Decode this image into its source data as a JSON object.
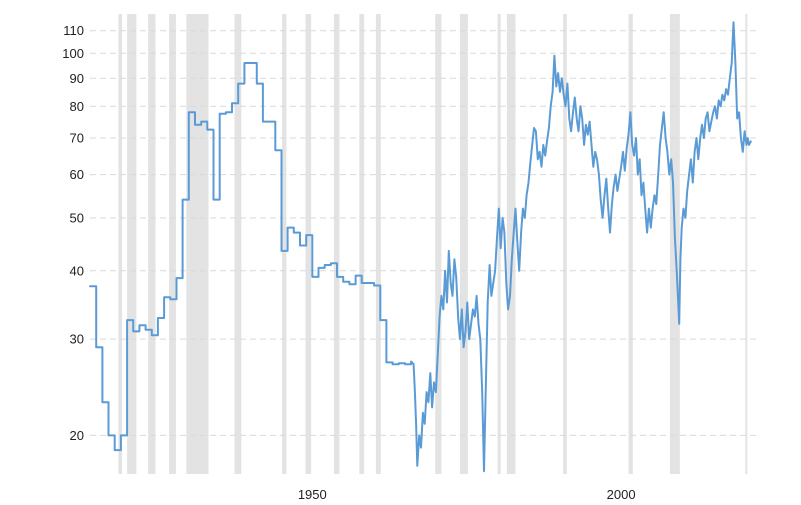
{
  "chart_data": {
    "type": "line",
    "title": "",
    "xlabel": "",
    "ylabel": "",
    "y_scale": "log",
    "xlim": [
      1914,
      2022
    ],
    "ylim": [
      17,
      118
    ],
    "grid": true,
    "legend": "none",
    "colors": {
      "series": "#5b9bd5",
      "recession": "#e3e3e3",
      "grid": "#d9d9d9"
    },
    "y_ticks": [
      {
        "value": 20,
        "label": "20"
      },
      {
        "value": 30,
        "label": "30"
      },
      {
        "value": 40,
        "label": "40"
      },
      {
        "value": 50,
        "label": "50"
      },
      {
        "value": 60,
        "label": "60"
      },
      {
        "value": 70,
        "label": "70"
      },
      {
        "value": 80,
        "label": "80"
      },
      {
        "value": 90,
        "label": "90"
      },
      {
        "value": 100,
        "label": "100"
      },
      {
        "value": 110,
        "label": "110"
      }
    ],
    "x_ticks": [
      {
        "value": 1950,
        "label": "1950"
      },
      {
        "value": 2000,
        "label": "2000"
      }
    ],
    "recession_bands": [
      [
        1918.6,
        1919.2
      ],
      [
        1920.0,
        1921.5
      ],
      [
        1923.4,
        1924.6
      ],
      [
        1926.8,
        1927.9
      ],
      [
        1929.6,
        1933.2
      ],
      [
        1937.4,
        1938.5
      ],
      [
        1945.1,
        1945.8
      ],
      [
        1948.9,
        1949.8
      ],
      [
        1953.5,
        1954.4
      ],
      [
        1957.6,
        1958.4
      ],
      [
        1960.3,
        1961.1
      ],
      [
        1969.9,
        1970.9
      ],
      [
        1973.9,
        1975.2
      ],
      [
        1980.0,
        1980.5
      ],
      [
        1981.5,
        1982.9
      ],
      [
        1990.6,
        1991.2
      ],
      [
        2001.2,
        2001.9
      ],
      [
        2007.9,
        2009.5
      ],
      [
        2020.1,
        2020.4
      ]
    ],
    "series": [
      {
        "values": [
          [
            1914,
            37.5
          ],
          [
            1915,
            37.5
          ],
          [
            1915,
            29
          ],
          [
            1916,
            29
          ],
          [
            1916,
            23
          ],
          [
            1917,
            23
          ],
          [
            1917,
            20
          ],
          [
            1918,
            20
          ],
          [
            1918,
            18.8
          ],
          [
            1919,
            18.8
          ],
          [
            1919,
            20
          ],
          [
            1920,
            20
          ],
          [
            1920,
            32.5
          ],
          [
            1921,
            32.5
          ],
          [
            1921,
            31
          ],
          [
            1922,
            31
          ],
          [
            1922,
            31.8
          ],
          [
            1923,
            31.8
          ],
          [
            1923,
            31.2
          ],
          [
            1924,
            31.2
          ],
          [
            1924,
            30.5
          ],
          [
            1925,
            30.5
          ],
          [
            1925,
            32.8
          ],
          [
            1926,
            32.8
          ],
          [
            1926,
            35.8
          ],
          [
            1927,
            35.8
          ],
          [
            1927,
            35.5
          ],
          [
            1928,
            35.5
          ],
          [
            1928,
            38.8
          ],
          [
            1929,
            38.8
          ],
          [
            1929,
            54
          ],
          [
            1930,
            54
          ],
          [
            1930,
            78
          ],
          [
            1931,
            78
          ],
          [
            1931,
            74
          ],
          [
            1932,
            74
          ],
          [
            1932,
            75
          ],
          [
            1933,
            75
          ],
          [
            1933,
            72.5
          ],
          [
            1934,
            72.5
          ],
          [
            1934,
            54
          ],
          [
            1935,
            54
          ],
          [
            1935,
            77.5
          ],
          [
            1936,
            77.5
          ],
          [
            1936,
            78
          ],
          [
            1937,
            78
          ],
          [
            1937,
            81
          ],
          [
            1938,
            81
          ],
          [
            1938,
            88
          ],
          [
            1939,
            88
          ],
          [
            1939,
            96
          ],
          [
            1940,
            96
          ],
          [
            1940,
            96
          ],
          [
            1941,
            96
          ],
          [
            1941,
            88
          ],
          [
            1942,
            88
          ],
          [
            1942,
            75
          ],
          [
            1943,
            75
          ],
          [
            1943,
            75
          ],
          [
            1944,
            75
          ],
          [
            1944,
            66.5
          ],
          [
            1945,
            66.5
          ],
          [
            1945,
            43.5
          ],
          [
            1946,
            43.5
          ],
          [
            1946,
            48
          ],
          [
            1947,
            48
          ],
          [
            1947,
            47
          ],
          [
            1948,
            47
          ],
          [
            1948,
            44.5
          ],
          [
            1949,
            44.5
          ],
          [
            1949,
            46.5
          ],
          [
            1950,
            46.5
          ],
          [
            1950,
            39
          ],
          [
            1951,
            39
          ],
          [
            1951,
            40.5
          ],
          [
            1952,
            40.5
          ],
          [
            1952,
            41
          ],
          [
            1953,
            41
          ],
          [
            1953,
            41.3
          ],
          [
            1954,
            41.3
          ],
          [
            1954,
            39
          ],
          [
            1955,
            39
          ],
          [
            1955,
            38.2
          ],
          [
            1956,
            38.2
          ],
          [
            1956,
            37.8
          ],
          [
            1957,
            37.8
          ],
          [
            1957,
            39.2
          ],
          [
            1958,
            39.2
          ],
          [
            1958,
            38
          ],
          [
            1959,
            38
          ],
          [
            1959,
            38
          ],
          [
            1960,
            38
          ],
          [
            1960,
            37.6
          ],
          [
            1961,
            37.6
          ],
          [
            1961,
            32.5
          ],
          [
            1962,
            32.5
          ],
          [
            1962,
            27.2
          ],
          [
            1963,
            27.2
          ],
          [
            1963,
            27
          ],
          [
            1964,
            27
          ],
          [
            1964,
            27.1
          ],
          [
            1965,
            27.1
          ],
          [
            1965,
            27
          ],
          [
            1966,
            27
          ],
          [
            1966,
            27.3
          ],
          [
            1966.4,
            27
          ],
          [
            1966.6,
            24
          ],
          [
            1966.8,
            21
          ],
          [
            1967.0,
            17.6
          ],
          [
            1967.3,
            20
          ],
          [
            1967.6,
            19
          ],
          [
            1967.9,
            22
          ],
          [
            1968.2,
            21
          ],
          [
            1968.5,
            24
          ],
          [
            1968.8,
            23
          ],
          [
            1969.1,
            26
          ],
          [
            1969.4,
            22.5
          ],
          [
            1969.7,
            25
          ],
          [
            1970.0,
            24
          ],
          [
            1970.3,
            28
          ],
          [
            1970.6,
            33
          ],
          [
            1970.9,
            36
          ],
          [
            1971.2,
            34
          ],
          [
            1971.5,
            40
          ],
          [
            1971.8,
            35
          ],
          [
            1972.1,
            43.5
          ],
          [
            1972.4,
            38
          ],
          [
            1972.7,
            36
          ],
          [
            1973.0,
            42
          ],
          [
            1973.3,
            39
          ],
          [
            1973.6,
            33
          ],
          [
            1973.9,
            30
          ],
          [
            1974.2,
            34
          ],
          [
            1974.5,
            29
          ],
          [
            1974.8,
            31
          ],
          [
            1975.1,
            35
          ],
          [
            1975.4,
            30
          ],
          [
            1975.7,
            32
          ],
          [
            1976.0,
            34
          ],
          [
            1976.3,
            33
          ],
          [
            1976.6,
            36
          ],
          [
            1976.9,
            32
          ],
          [
            1977.2,
            30
          ],
          [
            1977.5,
            24
          ],
          [
            1977.8,
            17.2
          ],
          [
            1978.1,
            25
          ],
          [
            1978.4,
            35
          ],
          [
            1978.7,
            41
          ],
          [
            1979.0,
            36
          ],
          [
            1979.3,
            38
          ],
          [
            1979.6,
            40
          ],
          [
            1979.9,
            46
          ],
          [
            1980.2,
            52
          ],
          [
            1980.5,
            44
          ],
          [
            1980.8,
            50
          ],
          [
            1981.1,
            47
          ],
          [
            1981.4,
            38
          ],
          [
            1981.7,
            34
          ],
          [
            1982.0,
            36
          ],
          [
            1982.3,
            42
          ],
          [
            1982.6,
            47
          ],
          [
            1982.9,
            52
          ],
          [
            1983.2,
            45
          ],
          [
            1983.5,
            40
          ],
          [
            1983.8,
            47
          ],
          [
            1984.1,
            52
          ],
          [
            1984.4,
            50
          ],
          [
            1984.7,
            55
          ],
          [
            1985.0,
            58
          ],
          [
            1985.3,
            63
          ],
          [
            1985.6,
            68
          ],
          [
            1985.9,
            73
          ],
          [
            1986.2,
            72
          ],
          [
            1986.5,
            64
          ],
          [
            1986.8,
            66
          ],
          [
            1987.1,
            62
          ],
          [
            1987.4,
            68
          ],
          [
            1987.7,
            65
          ],
          [
            1988.0,
            69
          ],
          [
            1988.3,
            73
          ],
          [
            1988.6,
            80
          ],
          [
            1988.9,
            85
          ],
          [
            1989.2,
            99
          ],
          [
            1989.5,
            87
          ],
          [
            1989.8,
            92
          ],
          [
            1990.1,
            85
          ],
          [
            1990.4,
            90
          ],
          [
            1990.7,
            84
          ],
          [
            1991.0,
            80
          ],
          [
            1991.3,
            88
          ],
          [
            1991.6,
            76
          ],
          [
            1991.9,
            72
          ],
          [
            1992.2,
            78
          ],
          [
            1992.5,
            83
          ],
          [
            1992.8,
            76
          ],
          [
            1993.1,
            72
          ],
          [
            1993.4,
            80
          ],
          [
            1993.7,
            76
          ],
          [
            1994.0,
            68
          ],
          [
            1994.3,
            74
          ],
          [
            1994.6,
            71
          ],
          [
            1994.9,
            75
          ],
          [
            1995.2,
            68
          ],
          [
            1995.5,
            62
          ],
          [
            1995.8,
            66
          ],
          [
            1996.1,
            64
          ],
          [
            1996.4,
            60
          ],
          [
            1996.7,
            54
          ],
          [
            1997.0,
            50
          ],
          [
            1997.3,
            55
          ],
          [
            1997.6,
            59
          ],
          [
            1997.9,
            52
          ],
          [
            1998.2,
            47
          ],
          [
            1998.5,
            53
          ],
          [
            1998.8,
            57
          ],
          [
            1999.1,
            60
          ],
          [
            1999.4,
            56
          ],
          [
            1999.7,
            59
          ],
          [
            2000.0,
            62
          ],
          [
            2000.3,
            66
          ],
          [
            2000.6,
            61
          ],
          [
            2000.9,
            67
          ],
          [
            2001.2,
            71
          ],
          [
            2001.5,
            78
          ],
          [
            2001.8,
            68
          ],
          [
            2002.1,
            65
          ],
          [
            2002.4,
            70
          ],
          [
            2002.7,
            60
          ],
          [
            2003.0,
            64
          ],
          [
            2003.3,
            55
          ],
          [
            2003.6,
            58
          ],
          [
            2003.9,
            52
          ],
          [
            2004.2,
            47
          ],
          [
            2004.5,
            52
          ],
          [
            2004.8,
            48
          ],
          [
            2005.1,
            52
          ],
          [
            2005.4,
            55
          ],
          [
            2005.7,
            53
          ],
          [
            2006.0,
            60
          ],
          [
            2006.3,
            68
          ],
          [
            2006.6,
            73
          ],
          [
            2006.9,
            78
          ],
          [
            2007.2,
            70
          ],
          [
            2007.5,
            66
          ],
          [
            2007.8,
            60
          ],
          [
            2008.1,
            64
          ],
          [
            2008.4,
            58
          ],
          [
            2008.7,
            46
          ],
          [
            2009.0,
            40
          ],
          [
            2009.2,
            36
          ],
          [
            2009.4,
            32
          ],
          [
            2009.6,
            42
          ],
          [
            2009.8,
            48
          ],
          [
            2010.1,
            52
          ],
          [
            2010.4,
            50
          ],
          [
            2010.7,
            56
          ],
          [
            2011.0,
            60
          ],
          [
            2011.3,
            64
          ],
          [
            2011.6,
            58
          ],
          [
            2011.9,
            66
          ],
          [
            2012.2,
            70
          ],
          [
            2012.5,
            64
          ],
          [
            2012.8,
            70
          ],
          [
            2013.1,
            74
          ],
          [
            2013.4,
            70
          ],
          [
            2013.7,
            76
          ],
          [
            2014.0,
            78
          ],
          [
            2014.3,
            72
          ],
          [
            2014.6,
            75
          ],
          [
            2014.9,
            78
          ],
          [
            2015.2,
            80
          ],
          [
            2015.5,
            76
          ],
          [
            2015.8,
            82
          ],
          [
            2016.1,
            80
          ],
          [
            2016.4,
            84
          ],
          [
            2016.7,
            82
          ],
          [
            2017.0,
            86
          ],
          [
            2017.3,
            84
          ],
          [
            2017.6,
            90
          ],
          [
            2017.9,
            96
          ],
          [
            2018.2,
            114
          ],
          [
            2018.5,
            96
          ],
          [
            2018.8,
            76
          ],
          [
            2019.1,
            78
          ],
          [
            2019.4,
            70
          ],
          [
            2019.7,
            66
          ],
          [
            2020.0,
            72
          ],
          [
            2020.3,
            68
          ],
          [
            2020.5,
            70
          ],
          [
            2020.7,
            68
          ],
          [
            2021.0,
            69
          ]
        ]
      }
    ]
  }
}
